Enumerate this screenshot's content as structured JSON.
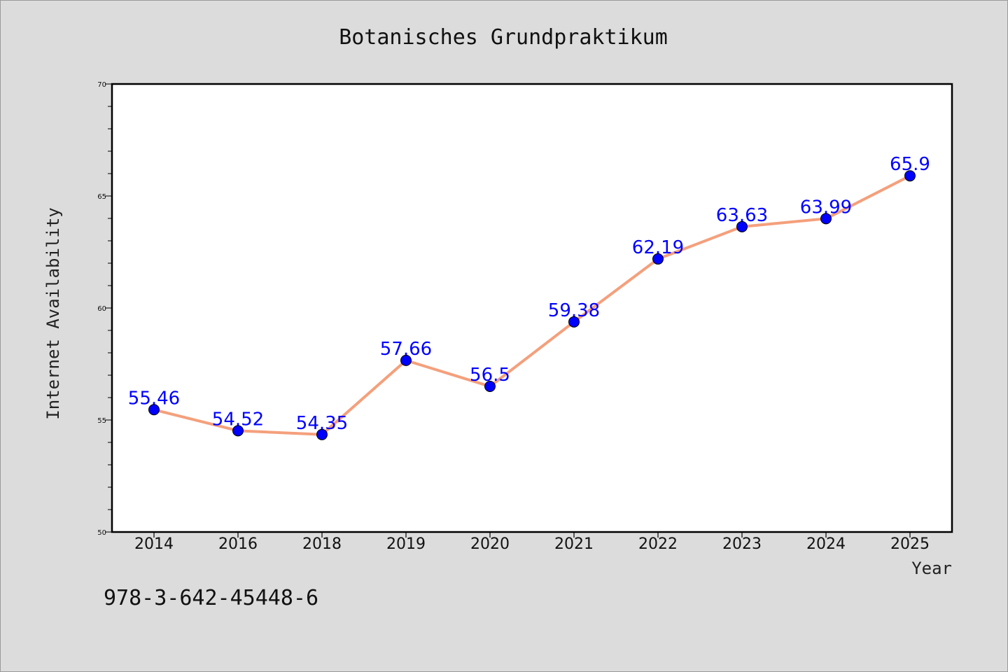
{
  "chart_data": {
    "type": "line",
    "title": "Botanisches Grundpraktikum",
    "xlabel": "Year",
    "ylabel": "Internet Availability",
    "categories": [
      "2014",
      "2016",
      "2018",
      "2019",
      "2020",
      "2021",
      "2022",
      "2023",
      "2024",
      "2025"
    ],
    "values": [
      55.46,
      54.52,
      54.35,
      57.66,
      56.5,
      59.38,
      62.19,
      63.63,
      63.99,
      65.9
    ],
    "data_labels": [
      "55.46",
      "54.52",
      "54.35",
      "57.66",
      "56.5",
      "59.38",
      "62.19",
      "63.63",
      "63.99",
      "65.9"
    ],
    "ylim": [
      50,
      70
    ],
    "yticks": [
      "50",
      "55",
      "60",
      "65",
      "70"
    ],
    "grid": false,
    "legend": "none",
    "line_color": "#f4a07c",
    "marker_color": "#0000ff"
  },
  "footnote": "978-3-642-45448-6"
}
